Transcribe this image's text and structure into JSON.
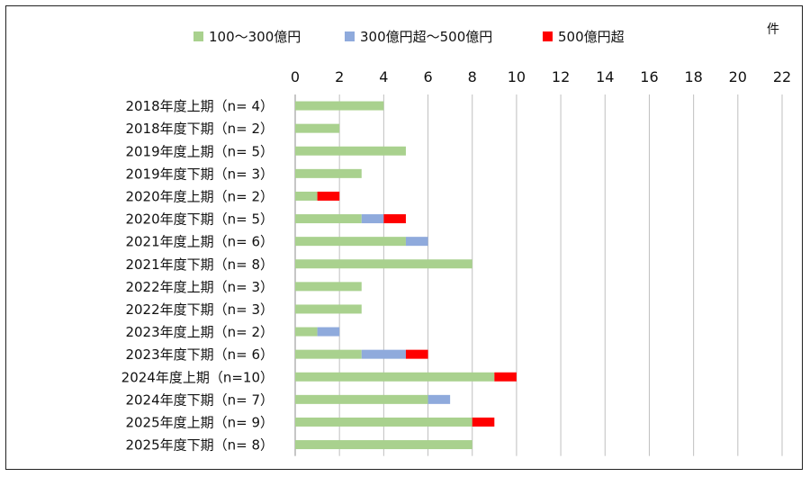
{
  "chart_data": {
    "type": "bar",
    "orientation": "horizontal",
    "stacked": true,
    "unit_label": "件",
    "xlim": [
      0,
      22
    ],
    "x_ticks": [
      0,
      2,
      4,
      6,
      8,
      10,
      12,
      14,
      16,
      18,
      20,
      22
    ],
    "grid": true,
    "legend_position": "top",
    "categories": [
      "2018年度上期（n=  4）",
      "2018年度下期（n=  2）",
      "2019年度上期（n=  5）",
      "2019年度下期（n=  3）",
      "2020年度上期（n=  2）",
      "2020年度下期（n=  5）",
      "2021年度上期（n=  6）",
      "2021年度下期（n=  8）",
      "2022年度上期（n=  3）",
      "2022年度下期（n=  3）",
      "2023年度上期（n=  2）",
      "2023年度下期（n=  6）",
      "2024年度上期（n=10）",
      "2024年度下期（n=  7）",
      "2025年度上期（n=  9）",
      "2025年度下期（n= 8）"
    ],
    "series": [
      {
        "name": "100～300億円",
        "color": "#a9d18e",
        "values": [
          4,
          2,
          5,
          3,
          1,
          3,
          5,
          8,
          3,
          3,
          1,
          3,
          9,
          6,
          8,
          8
        ]
      },
      {
        "name": "300億円超～500億円",
        "color": "#8faadc",
        "values": [
          0,
          0,
          0,
          0,
          0,
          1,
          1,
          0,
          0,
          0,
          1,
          2,
          0,
          1,
          0,
          0
        ]
      },
      {
        "name": "500億円超",
        "color": "#ff0000",
        "values": [
          0,
          0,
          0,
          0,
          1,
          1,
          0,
          0,
          0,
          0,
          0,
          1,
          1,
          0,
          1,
          0
        ]
      }
    ]
  }
}
